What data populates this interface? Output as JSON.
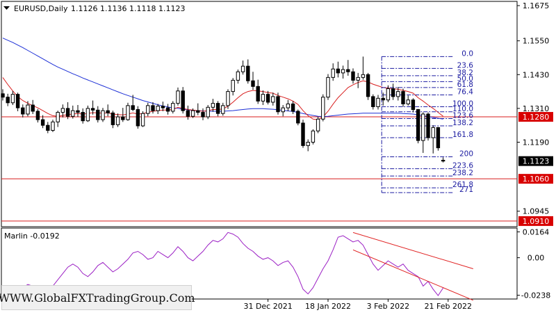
{
  "header": {
    "symbol_timeframe": "EURUSD,Daily",
    "ohlc": "1.1126 1.1136 1.1118 1.1123"
  },
  "watermark": "WWW.GlobalFXTradingGroup.Com",
  "colors": {
    "bull": "#000000",
    "bear": "#000000",
    "ma_slow": "#1c2fd6",
    "ma_fast": "#d81e1e",
    "level_line": "#d81e1e",
    "fib": "#1a1aa0",
    "oscillator": "#9b1fc4",
    "channel": "#e02020",
    "price_tag_bg": "#d80000"
  },
  "chart_data": [
    {
      "type": "candlestick",
      "title": "EURUSD,Daily",
      "ylim": [
        1.089,
        1.169
      ],
      "y_ticks": [
        "1.1675",
        "1.1550",
        "1.1430",
        "1.1310",
        "1.1190",
        "1.0945"
      ],
      "x_tick_labels": [
        {
          "label": "31 Dec 2021",
          "index": 53
        },
        {
          "label": "18 Jan 2022",
          "index": 65
        },
        {
          "label": "3 Feb 2022",
          "index": 77
        },
        {
          "label": "21 Feb 2022",
          "index": 89
        }
      ],
      "current_price": "1.1123",
      "horizontal_levels": [
        {
          "value": 1.128,
          "label": "1.1280"
        },
        {
          "value": 1.106,
          "label": "1.1060"
        },
        {
          "value": 1.091,
          "label": "1.0910"
        }
      ],
      "candles": [
        [
          1.1362,
          1.1378,
          1.1338,
          1.135
        ],
        [
          1.135,
          1.1362,
          1.1318,
          1.133
        ],
        [
          1.133,
          1.1372,
          1.1322,
          1.136
        ],
        [
          1.136,
          1.1366,
          1.13,
          1.1312
        ],
        [
          1.1312,
          1.1324,
          1.1278,
          1.129
        ],
        [
          1.129,
          1.1336,
          1.1282,
          1.1322
        ],
        [
          1.1322,
          1.134,
          1.129,
          1.13
        ],
        [
          1.13,
          1.1308,
          1.126,
          1.127
        ],
        [
          1.127,
          1.1286,
          1.124,
          1.125
        ],
        [
          1.125,
          1.1262,
          1.1222,
          1.1232
        ],
        [
          1.1232,
          1.127,
          1.1226,
          1.1262
        ],
        [
          1.1262,
          1.1302,
          1.1244,
          1.1296
        ],
        [
          1.1296,
          1.1324,
          1.1278,
          1.131
        ],
        [
          1.131,
          1.1332,
          1.1272,
          1.1282
        ],
        [
          1.1282,
          1.132,
          1.1274,
          1.1302
        ],
        [
          1.1302,
          1.1322,
          1.128,
          1.1296
        ],
        [
          1.1296,
          1.131,
          1.1256,
          1.1266
        ],
        [
          1.1266,
          1.132,
          1.1262,
          1.131
        ],
        [
          1.131,
          1.1338,
          1.1288,
          1.1304
        ],
        [
          1.1304,
          1.1318,
          1.126,
          1.127
        ],
        [
          1.127,
          1.1312,
          1.1262,
          1.1302
        ],
        [
          1.1302,
          1.1324,
          1.1282,
          1.1294
        ],
        [
          1.1294,
          1.1302,
          1.124,
          1.1252
        ],
        [
          1.1252,
          1.1292,
          1.1244,
          1.128
        ],
        [
          1.128,
          1.1312,
          1.1262,
          1.127
        ],
        [
          1.127,
          1.133,
          1.1266,
          1.132
        ],
        [
          1.132,
          1.1358,
          1.13,
          1.1306
        ],
        [
          1.1306,
          1.1318,
          1.1238,
          1.1248
        ],
        [
          1.1248,
          1.13,
          1.1244,
          1.1292
        ],
        [
          1.1292,
          1.133,
          1.1282,
          1.132
        ],
        [
          1.132,
          1.1332,
          1.1292,
          1.1302
        ],
        [
          1.1302,
          1.1326,
          1.129,
          1.1318
        ],
        [
          1.1318,
          1.1334,
          1.13,
          1.1312
        ],
        [
          1.1312,
          1.1326,
          1.1288,
          1.13
        ],
        [
          1.13,
          1.1336,
          1.1292,
          1.1328
        ],
        [
          1.1328,
          1.1384,
          1.132,
          1.1372
        ],
        [
          1.1372,
          1.1386,
          1.1292,
          1.1302
        ],
        [
          1.1302,
          1.132,
          1.127,
          1.1282
        ],
        [
          1.1282,
          1.131,
          1.1276,
          1.1302
        ],
        [
          1.1302,
          1.1328,
          1.1286,
          1.1296
        ],
        [
          1.1296,
          1.131,
          1.1268,
          1.128
        ],
        [
          1.128,
          1.1322,
          1.1272,
          1.1314
        ],
        [
          1.1314,
          1.1344,
          1.1298,
          1.1328
        ],
        [
          1.1328,
          1.1336,
          1.1282,
          1.1292
        ],
        [
          1.1292,
          1.133,
          1.1284,
          1.132
        ],
        [
          1.132,
          1.1378,
          1.1308,
          1.137
        ],
        [
          1.137,
          1.1418,
          1.1356,
          1.141
        ],
        [
          1.141,
          1.1448,
          1.1398,
          1.144
        ],
        [
          1.144,
          1.148,
          1.143,
          1.146
        ],
        [
          1.146,
          1.1484,
          1.1398,
          1.1408
        ],
        [
          1.1408,
          1.144,
          1.1376,
          1.1388
        ],
        [
          1.1388,
          1.1412,
          1.1326,
          1.1336
        ],
        [
          1.1336,
          1.1374,
          1.1322,
          1.136
        ],
        [
          1.136,
          1.1372,
          1.1324,
          1.1332
        ],
        [
          1.1332,
          1.1366,
          1.132,
          1.1352
        ],
        [
          1.1352,
          1.1366,
          1.1288,
          1.1298
        ],
        [
          1.1298,
          1.1322,
          1.1282,
          1.1312
        ],
        [
          1.1312,
          1.134,
          1.13,
          1.1326
        ],
        [
          1.1326,
          1.1336,
          1.129,
          1.13
        ],
        [
          1.13,
          1.1306,
          1.125,
          1.1258
        ],
        [
          1.1258,
          1.127,
          1.117,
          1.1178
        ],
        [
          1.1178,
          1.12,
          1.1158,
          1.119
        ],
        [
          1.119,
          1.1236,
          1.1182,
          1.123
        ],
        [
          1.123,
          1.128,
          1.1222,
          1.1272
        ],
        [
          1.1272,
          1.136,
          1.1264,
          1.135
        ],
        [
          1.135,
          1.1432,
          1.134,
          1.142
        ],
        [
          1.142,
          1.147,
          1.1408,
          1.145
        ],
        [
          1.145,
          1.1476,
          1.142,
          1.1436
        ],
        [
          1.1436,
          1.1462,
          1.1416,
          1.1448
        ],
        [
          1.1448,
          1.1482,
          1.1426,
          1.144
        ],
        [
          1.144,
          1.1452,
          1.1398,
          1.141
        ],
        [
          1.141,
          1.1436,
          1.1382,
          1.142
        ],
        [
          1.142,
          1.1494,
          1.1412,
          1.143
        ],
        [
          1.143,
          1.1436,
          1.134,
          1.1352
        ],
        [
          1.1352,
          1.136,
          1.1306,
          1.1316
        ],
        [
          1.1316,
          1.1358,
          1.1306,
          1.1346
        ],
        [
          1.1346,
          1.1366,
          1.132,
          1.134
        ],
        [
          1.134,
          1.1392,
          1.1332,
          1.138
        ],
        [
          1.138,
          1.1398,
          1.134,
          1.1352
        ],
        [
          1.1352,
          1.1386,
          1.1338,
          1.137
        ],
        [
          1.137,
          1.138,
          1.1316,
          1.1326
        ],
        [
          1.1326,
          1.1356,
          1.132,
          1.134
        ],
        [
          1.134,
          1.1346,
          1.1296,
          1.1306
        ],
        [
          1.1306,
          1.1308,
          1.1186,
          1.1196
        ],
        [
          1.1196,
          1.1296,
          1.1152,
          1.129
        ],
        [
          1.129,
          1.1296,
          1.1196,
          1.1206
        ],
        [
          1.1206,
          1.125,
          1.115,
          1.1242
        ],
        [
          1.1242,
          1.1244,
          1.116,
          1.117
        ],
        [
          1.1126,
          1.1136,
          1.1118,
          1.1123
        ]
      ],
      "ma_fast": [
        1.142,
        1.1395,
        1.1372,
        1.1352,
        1.1338,
        1.1328,
        1.132,
        1.1312,
        1.1302,
        1.1292,
        1.1284,
        1.1282,
        1.1285,
        1.1288,
        1.129,
        1.1292,
        1.129,
        1.1292,
        1.1295,
        1.1294,
        1.1293,
        1.1294,
        1.129,
        1.1288,
        1.1287,
        1.129,
        1.1294,
        1.129,
        1.1292,
        1.1296,
        1.13,
        1.1302,
        1.1304,
        1.1304,
        1.1306,
        1.1314,
        1.131,
        1.1306,
        1.1304,
        1.1302,
        1.13,
        1.1302,
        1.1306,
        1.1306,
        1.1308,
        1.1318,
        1.1332,
        1.1348,
        1.1362,
        1.137,
        1.1374,
        1.1372,
        1.137,
        1.1366,
        1.1364,
        1.1356,
        1.135,
        1.1344,
        1.1336,
        1.1324,
        1.1302,
        1.1284,
        1.1272,
        1.127,
        1.128,
        1.13,
        1.1325,
        1.1348,
        1.1366,
        1.1384,
        1.1394,
        1.1402,
        1.1408,
        1.1404,
        1.1396,
        1.139,
        1.1384,
        1.1382,
        1.138,
        1.1378,
        1.1374,
        1.137,
        1.1364,
        1.1348,
        1.1336,
        1.1322,
        1.131,
        1.1296,
        1.1282
      ],
      "ma_slow": [
        1.156,
        1.1552,
        1.1544,
        1.1535,
        1.1526,
        1.1516,
        1.1506,
        1.1496,
        1.1486,
        1.1476,
        1.1466,
        1.1457,
        1.1449,
        1.1441,
        1.1433,
        1.1426,
        1.1418,
        1.1411,
        1.1404,
        1.1397,
        1.139,
        1.1383,
        1.1376,
        1.1369,
        1.1362,
        1.1356,
        1.135,
        1.1344,
        1.1338,
        1.1333,
        1.1328,
        1.1323,
        1.1319,
        1.1315,
        1.1312,
        1.131,
        1.1307,
        1.1305,
        1.1303,
        1.1302,
        1.1301,
        1.13,
        1.13,
        1.13,
        1.13,
        1.1301,
        1.1302,
        1.1304,
        1.1306,
        1.1308,
        1.1309,
        1.1309,
        1.1309,
        1.1308,
        1.1307,
        1.1305,
        1.1303,
        1.1301,
        1.1299,
        1.1296,
        1.1292,
        1.1288,
        1.1285,
        1.1282,
        1.1281,
        1.1282,
        1.1284,
        1.1286,
        1.1288,
        1.129,
        1.1291,
        1.1292,
        1.1293,
        1.1293,
        1.1293,
        1.1293,
        1.1293,
        1.1293,
        1.1293,
        1.1293,
        1.1292,
        1.1291,
        1.129,
        1.1287,
        1.1284,
        1.1281,
        1.1278,
        1.1275,
        1.1272
      ],
      "fibonacci": {
        "start_index": 76,
        "levels": [
          {
            "label": "0.0",
            "value": 1.1494
          },
          {
            "label": "23.6",
            "value": 1.1452
          },
          {
            "label": "38.2",
            "value": 1.1426
          },
          {
            "label": "50.0",
            "value": 1.1405
          },
          {
            "label": "61.8",
            "value": 1.1384
          },
          {
            "label": "76.4",
            "value": 1.1358
          },
          {
            "label": "100.0",
            "value": 1.1316
          },
          {
            "label": "110.0",
            "value": 1.1298
          },
          {
            "label": "123.6",
            "value": 1.1274
          },
          {
            "label": "138.2",
            "value": 1.1248
          },
          {
            "label": "161.8",
            "value": 1.1206
          },
          {
            "label": "200",
            "value": 1.1138
          },
          {
            "label": "223.6",
            "value": 1.1096
          },
          {
            "label": "238.2",
            "value": 1.107
          },
          {
            "label": "261.8",
            "value": 1.1028
          },
          {
            "label": "271",
            "value": 1.1011
          }
        ]
      }
    },
    {
      "type": "line",
      "title": "Marlin -0.0192",
      "ylim": [
        -0.0262,
        0.0188
      ],
      "y_ticks": [
        "0.0164",
        "0.00",
        "-0.0238"
      ],
      "series": [
        {
          "name": "Marlin",
          "values": [
            -0.018,
            -0.02,
            -0.024,
            -0.021,
            -0.019,
            -0.017,
            -0.018,
            -0.02,
            -0.022,
            -0.021,
            -0.018,
            -0.014,
            -0.01,
            -0.006,
            -0.004,
            -0.006,
            -0.01,
            -0.012,
            -0.009,
            -0.005,
            -0.003,
            -0.006,
            -0.009,
            -0.007,
            -0.004,
            -0.001,
            0.003,
            0.004,
            0.002,
            -0.001,
            0.0,
            0.004,
            0.002,
            0.0,
            0.003,
            0.007,
            0.004,
            0.0,
            -0.002,
            0.001,
            0.004,
            0.008,
            0.011,
            0.01,
            0.012,
            0.016,
            0.015,
            0.013,
            0.009,
            0.006,
            0.004,
            0.001,
            -0.001,
            0.0,
            -0.002,
            -0.005,
            -0.003,
            -0.002,
            -0.006,
            -0.012,
            -0.02,
            -0.023,
            -0.019,
            -0.013,
            -0.007,
            -0.002,
            0.005,
            0.013,
            0.014,
            0.012,
            0.01,
            0.011,
            0.008,
            0.002,
            -0.004,
            -0.008,
            -0.005,
            -0.002,
            -0.004,
            -0.006,
            -0.004,
            -0.008,
            -0.01,
            -0.012,
            -0.018,
            -0.015,
            -0.02,
            -0.024,
            -0.0192
          ]
        }
      ],
      "channel_lines": [
        {
          "from": [
            70,
            0.016
          ],
          "to": [
            94,
            -0.007
          ]
        },
        {
          "from": [
            70,
            0.005
          ],
          "to": [
            94,
            -0.027
          ]
        }
      ]
    }
  ]
}
